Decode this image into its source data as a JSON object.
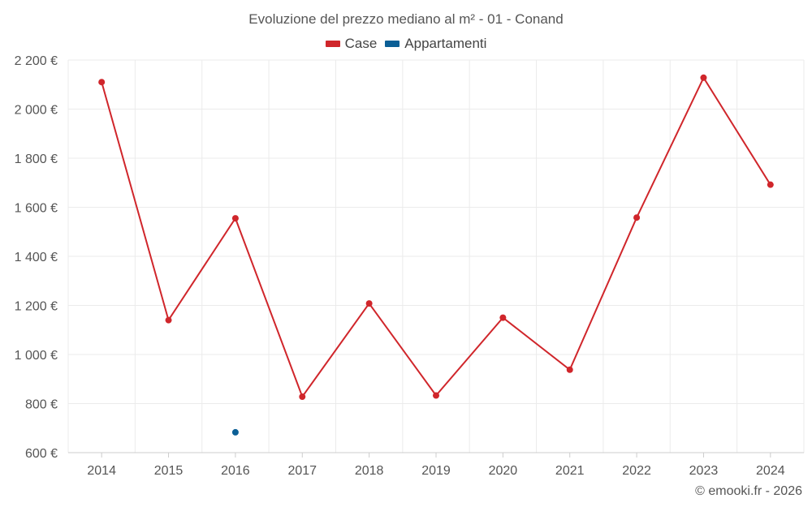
{
  "chart_data": {
    "type": "line",
    "title": "Evoluzione del prezzo mediano al m² - 01 - Conand",
    "x": [
      "2014",
      "2015",
      "2016",
      "2017",
      "2018",
      "2019",
      "2020",
      "2021",
      "2022",
      "2023",
      "2024"
    ],
    "yticks": [
      600,
      800,
      1000,
      1200,
      1400,
      1600,
      1800,
      2000,
      2200
    ],
    "ytick_labels": [
      "600 €",
      "800 €",
      "1 000 €",
      "1 200 €",
      "1 400 €",
      "1 600 €",
      "1 800 €",
      "2 000 €",
      "2 200 €"
    ],
    "ylim": [
      600,
      2200
    ],
    "grid": true,
    "legend_position": "top-center",
    "series": [
      {
        "name": "Case",
        "color": "#d0262b",
        "values": [
          2110,
          1140,
          1555,
          828,
          1208,
          833,
          1150,
          938,
          1558,
          2128,
          1692
        ]
      },
      {
        "name": "Appartamenti",
        "color": "#0b5f96",
        "values": [
          null,
          null,
          683,
          null,
          null,
          null,
          null,
          null,
          null,
          null,
          null
        ]
      }
    ]
  },
  "credit": "© emooki.fr - 2026"
}
